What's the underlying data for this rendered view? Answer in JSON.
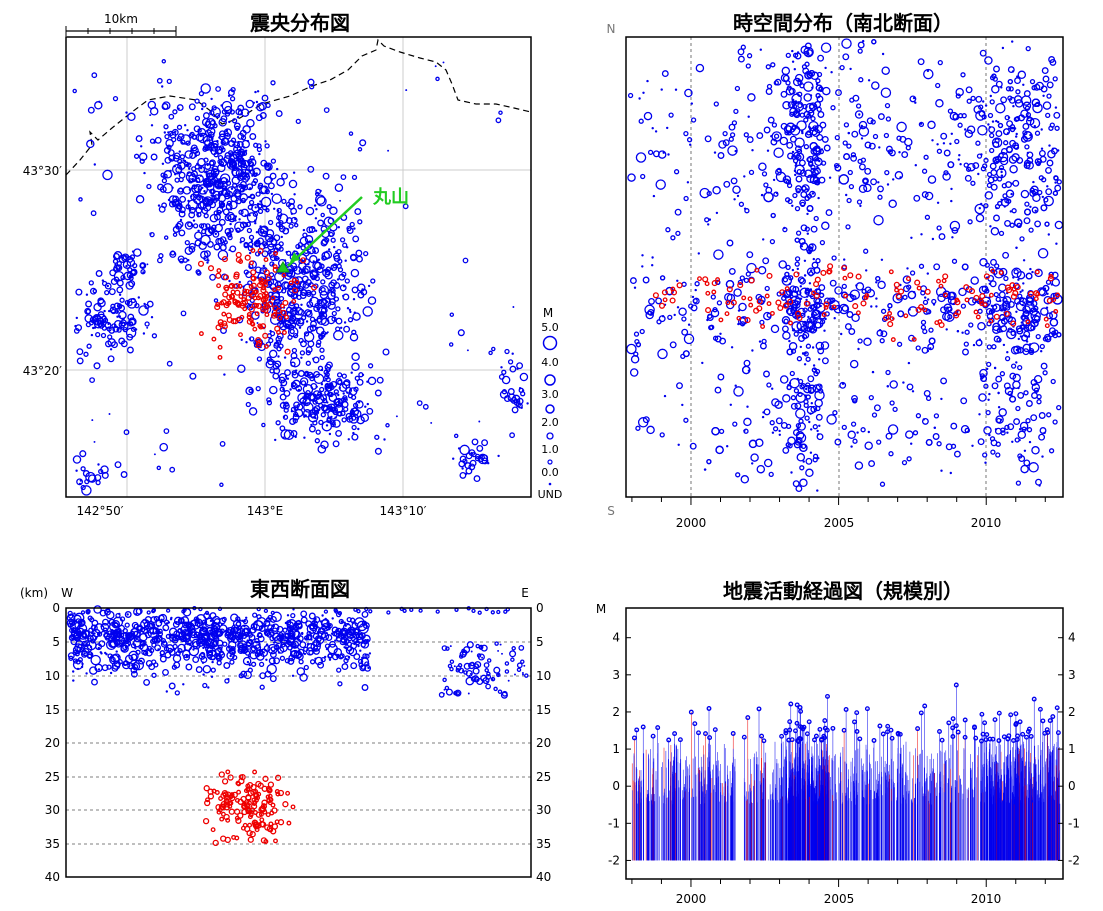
{
  "colors": {
    "shallow": "#0000ee",
    "deep": "#ee0000",
    "volcano": "#22cc22"
  },
  "chart_data": [
    {
      "type": "scatter",
      "title": "震央分布図",
      "scale_bar": "10km",
      "x_ticks": [
        "142°50′",
        "143°E",
        "143°10′"
      ],
      "y_ticks": [
        "43°30′",
        "43°20′"
      ],
      "annotation": "丸山",
      "legend": {
        "title": "M",
        "entries": [
          "5.0",
          "4.0",
          "3.0",
          "2.0",
          "1.0",
          "0.0",
          "UND"
        ]
      }
    },
    {
      "type": "scatter",
      "title": "時空間分布（南北断面）",
      "y_top_label": "N",
      "y_bottom_label": "S",
      "x_range": [
        1997.8,
        2012.6
      ],
      "x_ticks": [
        "2000",
        "2005",
        "2010"
      ]
    },
    {
      "type": "scatter",
      "title": "東西断面図",
      "y_unit": "(km)",
      "left_label": "W",
      "right_label": "E",
      "ylim": [
        0,
        40
      ],
      "y_ticks": [
        "0",
        "5",
        "10",
        "15",
        "20",
        "25",
        "30",
        "35",
        "40"
      ]
    },
    {
      "type": "bar",
      "title": "地震活動経過図（規模別）",
      "ylabel": "M",
      "ylim": [
        -2.5,
        4.8
      ],
      "x_range": [
        1997.8,
        2012.6
      ],
      "y_ticks": [
        "4",
        "3",
        "2",
        "1",
        "0",
        "-1",
        "-2"
      ],
      "x_ticks": [
        "2000",
        "2005",
        "2010"
      ]
    }
  ]
}
